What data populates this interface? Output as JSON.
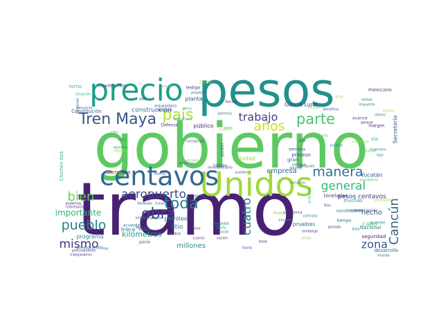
{
  "wordcloud": {
    "background": "#ffffff",
    "words": [
      {
        "text": "tramo",
        "color": "#482173"
      },
      {
        "text": "gobierno",
        "color": "#5ec962"
      },
      {
        "text": "pesos",
        "color": "#21918c"
      },
      {
        "text": "Unidos",
        "color": "#9fda3a"
      },
      {
        "text": "precio",
        "color": "#1f9e89"
      },
      {
        "text": "centavos",
        "color": "#31688e"
      },
      {
        "text": "Tren Maya",
        "color": "#3b528b"
      },
      {
        "text": "país",
        "color": "#b5de2b"
      },
      {
        "text": "trabajo",
        "color": "#443983"
      },
      {
        "text": "años",
        "color": "#cde11d"
      },
      {
        "text": "parte",
        "color": "#4ac16d"
      },
      {
        "text": "manera",
        "color": "#2c728e"
      },
      {
        "text": "general",
        "color": "#35b779"
      },
      {
        "text": "toda",
        "color": "#26828e"
      },
      {
        "text": "aeropuerto",
        "color": "#3e4a89"
      },
      {
        "text": "obra",
        "color": "#414487"
      },
      {
        "text": "pueblo",
        "color": "#287c8e"
      },
      {
        "text": "bien",
        "color": "#6ccd5a"
      },
      {
        "text": "mismo",
        "color": "#46327e"
      },
      {
        "text": "cuatro",
        "color": "#2a788e"
      },
      {
        "text": "Cancún",
        "color": "#33638d"
      },
      {
        "text": "zona",
        "color": "#39568c"
      },
      {
        "text": "importante",
        "color": "#2db27d"
      },
      {
        "text": "kilómetros",
        "color": "#1f998a"
      },
      {
        "text": "millones",
        "color": "#23888e"
      },
      {
        "text": "programa",
        "color": "#25848e"
      },
      {
        "text": "empresa",
        "color": "#2e6f8e"
      },
      {
        "text": "pesos centavos",
        "color": "#472d7b"
      },
      {
        "text": "hecho",
        "color": "#3f4788"
      },
      {
        "text": "Yucatán",
        "color": "#365c8d"
      },
      {
        "text": "cabo",
        "color": "#56c667"
      },
      {
        "text": "Secretaría",
        "color": "#38598c"
      },
      {
        "text": "movimiento",
        "color": "#3a548c"
      },
      {
        "text": "Constitución",
        "color": "#31668e"
      },
      {
        "text": "construcción",
        "color": "#2b748e"
      },
      {
        "text": "público",
        "color": "#481f70"
      },
      {
        "text": "planta",
        "color": "#3d4e8a"
      },
      {
        "text": "litio",
        "color": "#297a8e"
      },
      {
        "text": "petróleo",
        "color": "#2c718e"
      },
      {
        "text": "Ciudad",
        "color": "#a2da37"
      },
      {
        "text": "proceso",
        "color": "#3e4989"
      },
      {
        "text": "García Luna",
        "color": "#433e85"
      },
      {
        "text": "mexicano",
        "color": "#3c4f8a"
      },
      {
        "text": "secretario",
        "color": "#481c6e"
      },
      {
        "text": "presupuesto",
        "color": "#2c738e"
      },
      {
        "text": "pruebas",
        "color": "#2f6c8e"
      },
      {
        "text": "seguridad",
        "color": "#482475"
      },
      {
        "text": "desarrollo",
        "color": "#2d708e"
      },
      {
        "text": "Nacional",
        "color": "#2d718e"
      },
      {
        "text": "toneladas",
        "color": "#424186"
      },
      {
        "text": "muchas",
        "color": "#1fa088"
      },
      {
        "text": "testigo",
        "color": "#46337f"
      },
      {
        "text": "torno",
        "color": "#38b977"
      },
      {
        "text": "gran",
        "color": "#2f6b8e"
      },
      {
        "text": "semana",
        "color": "#3b518b"
      },
      {
        "text": "poder",
        "color": "#2e6e8e"
      },
      {
        "text": "vía",
        "color": "#3bbb75"
      },
      {
        "text": "Chichén Itzá",
        "color": "#2fb47c"
      },
      {
        "text": "federal",
        "color": "#2a768e"
      },
      {
        "text": "juicio",
        "color": "#453882"
      },
      {
        "text": "acuerdo",
        "color": "#2a778e"
      },
      {
        "text": "Centro",
        "color": "#39558c"
      },
      {
        "text": "cinco",
        "color": "#482878"
      },
      {
        "text": "social",
        "color": "#25838e"
      },
      {
        "text": "base",
        "color": "#472c7a"
      },
      {
        "text": "margen",
        "color": "#46307e"
      },
      {
        "text": "avance",
        "color": "#3d4d8a"
      },
      {
        "text": "tiempo",
        "color": "#30698e"
      },
      {
        "text": "puente",
        "color": "#1e9b8a"
      },
      {
        "text": "Defensa",
        "color": "#453581"
      },
      {
        "text": "Sonora",
        "color": "#482677"
      },
      {
        "text": "beneficio",
        "color": "#3a538b"
      },
      {
        "text": "citro",
        "color": "#95d840"
      },
      {
        "text": "rentas",
        "color": "#2e6d8e"
      },
      {
        "text": "impuesto",
        "color": "#287d8e"
      },
      {
        "text": "proyecto",
        "color": "#3c508b"
      },
      {
        "text": "permiso",
        "color": "#2b758e"
      },
      {
        "text": "asunto",
        "color": "#3f4889"
      },
      {
        "text": "abogados",
        "color": "#27808e"
      },
      {
        "text": "Carta",
        "color": "#2ab07f"
      },
      {
        "text": "Florida",
        "color": "#287c8e"
      },
      {
        "text": "Marcha",
        "color": "#404588"
      },
      {
        "text": "Veracruz",
        "color": "#482374"
      },
      {
        "text": "Zapata",
        "color": "#8bd646"
      },
      {
        "text": "vida",
        "color": "#481668"
      },
      {
        "text": "tierra",
        "color": "#2eb37c"
      },
      {
        "text": "arqueológica",
        "color": "#3a548c"
      },
      {
        "text": "hoy",
        "color": "#3d4e8a"
      },
      {
        "text": "trabajadores",
        "color": "#414287"
      },
      {
        "text": "precisamente",
        "color": "#472f7d"
      },
      {
        "text": "información",
        "color": "#472e7c"
      },
      {
        "text": "podemos",
        "color": "#482979"
      },
      {
        "text": "cuanto",
        "color": "#433d84"
      },
      {
        "text": "nación",
        "color": "#423f85"
      },
      {
        "text": "fauna",
        "color": "#3f4788"
      },
      {
        "text": "mundo",
        "color": "#355f8d"
      },
      {
        "text": "económica",
        "color": "#46307e"
      },
      {
        "text": "recursos",
        "color": "#2a768e"
      },
      {
        "text": "siempre",
        "color": "#2f6c8e"
      },
      {
        "text": "después",
        "color": "#32658e"
      },
      {
        "text": "dólares",
        "color": "#2e6d8e"
      },
      {
        "text": "pueden",
        "color": "#2c728e"
      },
      {
        "text": "revolucionario",
        "color": "#3e4c8a"
      },
      {
        "text": "corrupción",
        "color": "#3b518b"
      },
      {
        "text": "política",
        "color": "#26828e"
      },
      {
        "text": "ingeniero",
        "color": "#21908d"
      },
      {
        "text": "tipo",
        "color": "#23898e"
      },
      {
        "text": "estructura",
        "color": "#22a785"
      },
      {
        "text": "inversión",
        "color": "#70cf57"
      },
      {
        "text": "mientras",
        "color": "#355f8d"
      },
      {
        "text": "hablaba",
        "color": "#3e4a89"
      },
      {
        "text": "gente",
        "color": "#2c738e"
      },
      {
        "text": "reforma",
        "color": "#a8db34"
      },
      {
        "text": "ejemplo",
        "color": "#1fa187"
      },
      {
        "text": "cara",
        "color": "#1e9c89"
      },
      {
        "text": "creo",
        "color": "#2fb47c"
      },
      {
        "text": "denuncia",
        "color": "#404688"
      },
      {
        "text": "personas",
        "color": "#3a548c"
      },
      {
        "text": "medio",
        "color": "#7ad151"
      },
      {
        "text": "través",
        "color": "#2b758e"
      },
      {
        "text": "llevando",
        "color": "#3f4889"
      },
      {
        "text": "infraestructura",
        "color": "#33638d"
      },
      {
        "text": "Premium",
        "color": "#bddf26"
      },
      {
        "text": "lleva",
        "color": "#2ab07f"
      },
      {
        "text": "mayor",
        "color": "#a0da39"
      },
      {
        "text": "metros cúbico",
        "color": "#30698e"
      },
      {
        "text": "momento",
        "color": "#2d718e"
      },
      {
        "text": "investigación",
        "color": "#2e6d8e"
      },
      {
        "text": "contrato",
        "color": "#277f8e"
      },
      {
        "text": "periodo",
        "color": "#3e4c8a"
      },
      {
        "text": "embargo",
        "color": "#453781"
      },
      {
        "text": "área",
        "color": "#287d8e"
      },
      {
        "text": "parque",
        "color": "#482071"
      },
      {
        "text": "último",
        "color": "#27808e"
      },
      {
        "text": "alguna",
        "color": "#b8de29"
      },
      {
        "text": "empleos",
        "color": "#20928c"
      },
      {
        "text": "veces",
        "color": "#93d741"
      },
      {
        "text": "Tren",
        "color": "#3e4a89"
      },
      {
        "text": "incluso",
        "color": "#50c46a"
      },
      {
        "text": "sólo",
        "color": "#3a548c"
      },
      {
        "text": "necesidad",
        "color": "#9fda3a"
      },
      {
        "text": "Estados",
        "color": "#6ece58"
      },
      {
        "text": "ambiente",
        "color": "#3dbc74"
      },
      {
        "text": "punto",
        "color": "#52c569"
      },
      {
        "text": "Hidalgo",
        "color": "#8ed645"
      },
      {
        "text": "mantener",
        "color": "#9dd93b"
      },
      {
        "text": "presidente",
        "color": "#5cc863"
      },
      {
        "text": "situación",
        "color": "#2db27d"
      },
      {
        "text": "resultado",
        "color": "#1f958b"
      },
      {
        "text": "caso",
        "color": "#3b528b"
      }
    ]
  }
}
